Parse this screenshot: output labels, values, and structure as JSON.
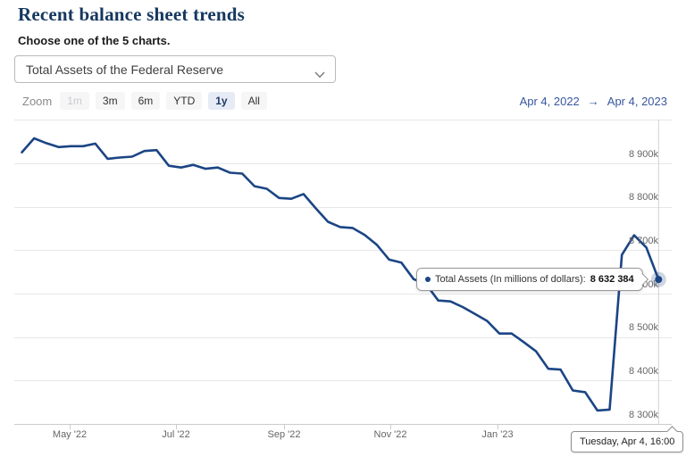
{
  "page": {
    "title": "Recent balance sheet trends",
    "subtitle": "Choose one of the 5 charts."
  },
  "chart_select": {
    "selected": "Total Assets of the Federal Reserve"
  },
  "toolbar": {
    "zoom_label": "Zoom",
    "buttons": [
      {
        "label": "1m",
        "state": "disabled"
      },
      {
        "label": "3m",
        "state": "normal"
      },
      {
        "label": "6m",
        "state": "normal"
      },
      {
        "label": "YTD",
        "state": "normal"
      },
      {
        "label": "1y",
        "state": "selected"
      },
      {
        "label": "All",
        "state": "normal"
      }
    ],
    "range_from": "Apr 4, 2022",
    "range_arrow": "→",
    "range_to": "Apr 4, 2023"
  },
  "tooltip": {
    "series_label": "Total Assets (In millions of dollars):",
    "value": "8 632 384",
    "date": "Tuesday, Apr 4, 16:00"
  },
  "colors": {
    "line": "#1b4584",
    "title_text": "#15375e",
    "range_text": "#39569e",
    "grid": "#e7e7e7",
    "axis": "#cccccc",
    "crosshair": "#d2d2d2",
    "button_selected_bg": "#e6ebf5"
  },
  "chart_data": {
    "type": "line",
    "title": "Total Assets of the Federal Reserve",
    "xlabel": "",
    "ylabel": "",
    "grid": true,
    "legend_position": "none",
    "x_range": [
      "Apr 4, 2022",
      "Apr 4, 2023"
    ],
    "ylim": [
      8300000,
      9000000
    ],
    "y_gridline_values": [
      9000000,
      8900000,
      8800000,
      8700000,
      8600000,
      8500000,
      8400000,
      8300000
    ],
    "ytick_labels": [
      "8 900k",
      "8 800k",
      "8 700k",
      "8 600k",
      "8 500k",
      "8 400k",
      "8 300k"
    ],
    "xtick_labels": [
      "May '22",
      "Jul '22",
      "Sep '22",
      "Nov '22",
      "Jan '23"
    ],
    "series": [
      {
        "name": "Total Assets (In millions of dollars)",
        "color": "#1b4584",
        "dates": [
          "2022-04-04",
          "2022-04-11",
          "2022-04-18",
          "2022-04-25",
          "2022-05-02",
          "2022-05-09",
          "2022-05-16",
          "2022-05-23",
          "2022-05-30",
          "2022-06-06",
          "2022-06-13",
          "2022-06-20",
          "2022-06-27",
          "2022-07-04",
          "2022-07-11",
          "2022-07-18",
          "2022-07-25",
          "2022-08-01",
          "2022-08-08",
          "2022-08-15",
          "2022-08-22",
          "2022-08-29",
          "2022-09-05",
          "2022-09-12",
          "2022-09-19",
          "2022-09-26",
          "2022-10-03",
          "2022-10-10",
          "2022-10-17",
          "2022-10-24",
          "2022-10-31",
          "2022-11-07",
          "2022-11-14",
          "2022-11-21",
          "2022-11-28",
          "2022-12-05",
          "2022-12-12",
          "2022-12-19",
          "2022-12-26",
          "2023-01-02",
          "2023-01-09",
          "2023-01-16",
          "2023-01-23",
          "2023-01-30",
          "2023-02-06",
          "2023-02-13",
          "2023-02-20",
          "2023-02-27",
          "2023-03-06",
          "2023-03-13",
          "2023-03-20",
          "2023-03-27",
          "2023-04-04"
        ],
        "values": [
          8925000,
          8957000,
          8946000,
          8937000,
          8939000,
          8939000,
          8945000,
          8910000,
          8913000,
          8915000,
          8928000,
          8930000,
          8894000,
          8890000,
          8896000,
          8887000,
          8890000,
          8878000,
          8876000,
          8847000,
          8841000,
          8820000,
          8818000,
          8829000,
          8796000,
          8765000,
          8753000,
          8751000,
          8735000,
          8712000,
          8678000,
          8671000,
          8633000,
          8622000,
          8584000,
          8582000,
          8569000,
          8553000,
          8537000,
          8508000,
          8508000,
          8488000,
          8467000,
          8427000,
          8425000,
          8377000,
          8373000,
          8331000,
          8333000,
          8689000,
          8734000,
          8706000,
          8632384
        ]
      }
    ],
    "highlighted_point": {
      "date": "Tuesday, Apr 4, 16:00",
      "value": 8632384,
      "value_formatted": "8 632 384"
    }
  }
}
